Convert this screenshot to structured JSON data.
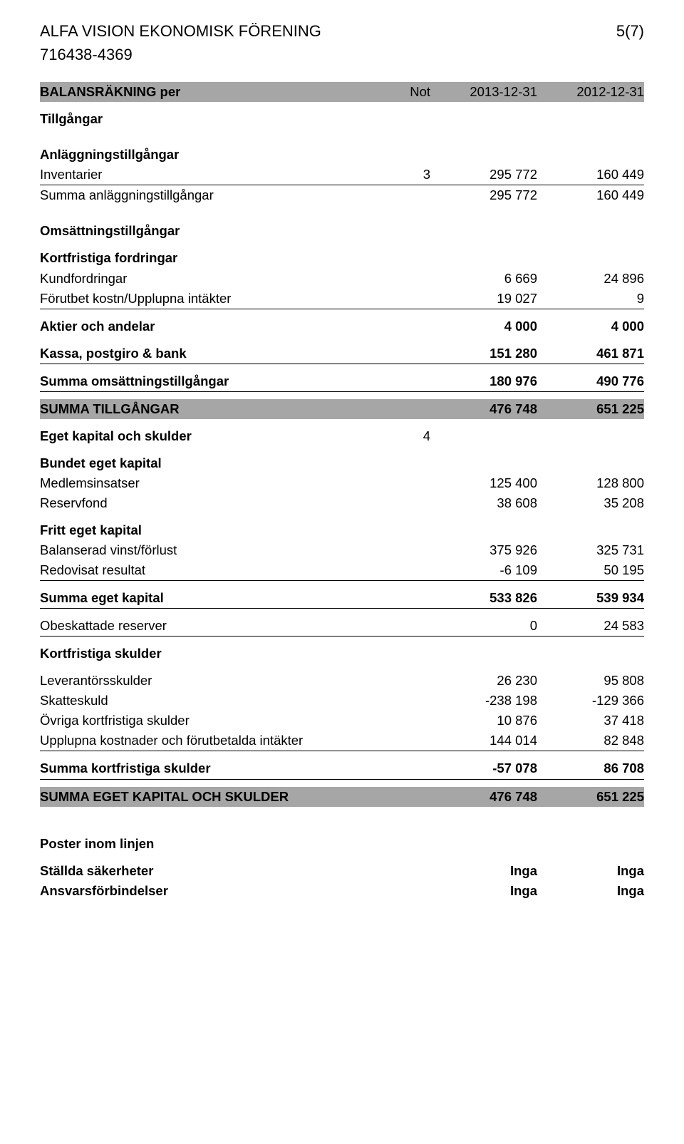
{
  "header": {
    "company": "ALFA VISION EKONOMISK FÖRENING",
    "orgnr": "716438-4369",
    "pagenr": "5(7)"
  },
  "titleRow": {
    "title": "BALANSRÄKNING per",
    "note": "Not",
    "c1": "2013-12-31",
    "c2": "2012-12-31"
  },
  "sections": {
    "tillgangar": "Tillgångar",
    "anlaggning": "Anläggningstillgångar",
    "omsattning": "Omsättningstillgångar",
    "kortfrFordr": "Kortfristiga fordringar",
    "egetkap_sk": "Eget kapital och skulder",
    "bundet": "Bundet eget kapital",
    "fritt": "Fritt eget kapital",
    "kortfrSk": "Kortfristiga skulder",
    "poster": "Poster inom linjen"
  },
  "lines": {
    "inventarier": {
      "l": "Inventarier",
      "note": "3",
      "c1": "295 772",
      "c2": "160 449"
    },
    "summaAnl": {
      "l": "Summa anläggningstillgångar",
      "c1": "295 772",
      "c2": "160 449"
    },
    "kundf": {
      "l": "Kundfordringar",
      "c1": "6 669",
      "c2": "24 896"
    },
    "forutbet": {
      "l": "Förutbet kostn/Upplupna intäkter",
      "c1": "19 027",
      "c2": "9"
    },
    "aktier": {
      "l": "Aktier och andelar",
      "c1": "4 000",
      "c2": "4 000"
    },
    "kassa": {
      "l": "Kassa, postgiro & bank",
      "c1": "151 280",
      "c2": "461 871"
    },
    "summaOms": {
      "l": "Summa omsättningstillgångar",
      "c1": "180 976",
      "c2": "490 776"
    },
    "summaTill": {
      "l": "SUMMA TILLGÅNGAR",
      "c1": "476 748",
      "c2": "651 225"
    },
    "egetNote": {
      "note": "4"
    },
    "medlem": {
      "l": "Medlemsinsatser",
      "c1": "125 400",
      "c2": "128 800"
    },
    "reserv": {
      "l": "Reservfond",
      "c1": "38 608",
      "c2": "35 208"
    },
    "balVF": {
      "l": "Balanserad vinst/förlust",
      "c1": "375 926",
      "c2": "325 731"
    },
    "redov": {
      "l": "Redovisat resultat",
      "c1": "-6 109",
      "c2": "50 195"
    },
    "summaEget": {
      "l": "Summa eget kapital",
      "c1": "533 826",
      "c2": "539 934"
    },
    "obesk": {
      "l": "Obeskattade reserver",
      "c1": "0",
      "c2": "24 583"
    },
    "lev": {
      "l": "Leverantörsskulder",
      "c1": "26 230",
      "c2": "95 808"
    },
    "skatt": {
      "l": "Skatteskuld",
      "c1": "-238 198",
      "c2": "-129 366"
    },
    "ovrKS": {
      "l": "Övriga kortfristiga skulder",
      "c1": "10 876",
      "c2": "37 418"
    },
    "upplupna": {
      "l": "Upplupna kostnader och förutbetalda intäkter",
      "c1": "144 014",
      "c2": "82 848"
    },
    "summaKS": {
      "l": "Summa kortfristiga skulder",
      "c1": "-57 078",
      "c2": "86 708"
    },
    "summaEKS": {
      "l": "SUMMA EGET KAPITAL OCH SKULDER",
      "c1": "476 748",
      "c2": "651 225"
    },
    "stallda": {
      "l": "Ställda säkerheter",
      "c1": "Inga",
      "c2": "Inga"
    },
    "ansvar": {
      "l": "Ansvarsförbindelser",
      "c1": "Inga",
      "c2": "Inga"
    }
  }
}
